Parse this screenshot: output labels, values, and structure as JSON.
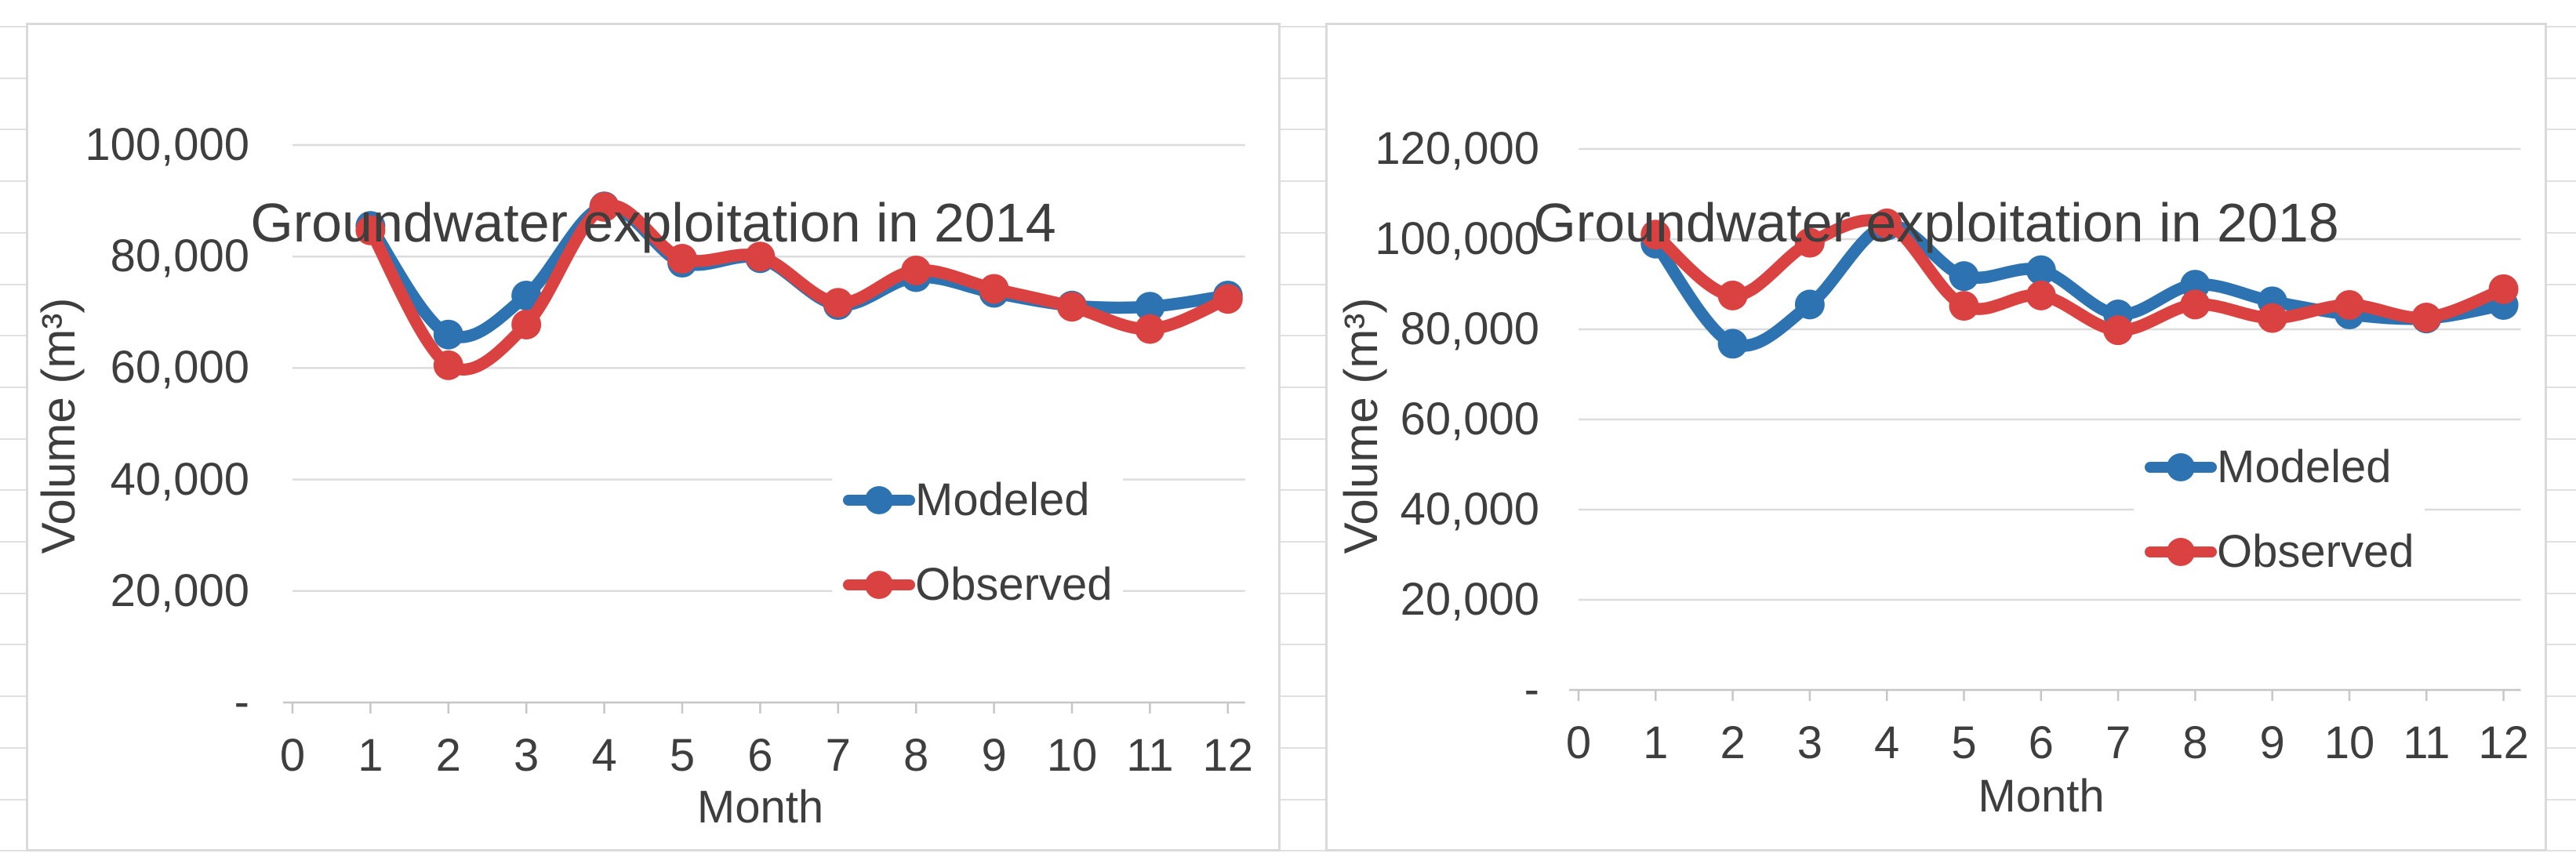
{
  "page": {
    "background": "#FFFFFF"
  },
  "chart_data": [
    {
      "type": "line",
      "title": "Groundwater exploitation in 2014",
      "xlabel": "Month",
      "ylabel": "Volume (m³)",
      "x": [
        1,
        2,
        3,
        4,
        5,
        6,
        7,
        8,
        9,
        10,
        11,
        12
      ],
      "xtick_labels": [
        "0",
        "1",
        "2",
        "3",
        "4",
        "5",
        "6",
        "7",
        "8",
        "9",
        "10",
        "11",
        "12"
      ],
      "ylim": [
        0,
        100000
      ],
      "yticks": [
        0,
        20000,
        40000,
        60000,
        80000,
        100000
      ],
      "ytick_labels": [
        "-",
        "20,000",
        "40,000",
        "60,000",
        "80,000",
        "100,000"
      ],
      "grid": "horizontal",
      "legend_position": "inside-right",
      "series": [
        {
          "name": "Modeled",
          "color": "#2D73B2",
          "values": [
            85500,
            66000,
            73000,
            89000,
            78900,
            79700,
            71300,
            76300,
            73500,
            71200,
            71000,
            73000
          ]
        },
        {
          "name": "Observed",
          "color": "#D94240",
          "values": [
            84700,
            60500,
            67800,
            88900,
            79600,
            80000,
            71700,
            77500,
            74200,
            71000,
            67000,
            72400
          ]
        }
      ]
    },
    {
      "type": "line",
      "title": "Groundwater exploitation in 2018",
      "xlabel": "Month",
      "ylabel": "Volume (m³)",
      "x": [
        1,
        2,
        3,
        4,
        5,
        6,
        7,
        8,
        9,
        10,
        11,
        12
      ],
      "xtick_labels": [
        "0",
        "1",
        "2",
        "3",
        "4",
        "5",
        "6",
        "7",
        "8",
        "9",
        "10",
        "11",
        "12"
      ],
      "ylim": [
        0,
        120000
      ],
      "yticks": [
        0,
        20000,
        40000,
        60000,
        80000,
        100000,
        120000
      ],
      "ytick_labels": [
        "-",
        "20,000",
        "40,000",
        "60,000",
        "80,000",
        "100,000",
        "120,000"
      ],
      "grid": "horizontal",
      "legend_position": "inside-right",
      "series": [
        {
          "name": "Modeled",
          "color": "#2D73B2",
          "values": [
            99000,
            76800,
            85500,
            103000,
            91800,
            93100,
            83300,
            89900,
            86200,
            83300,
            82400,
            85400
          ]
        },
        {
          "name": "Observed",
          "color": "#D94240",
          "values": [
            101000,
            87500,
            99200,
            103500,
            85200,
            87500,
            79800,
            85500,
            82500,
            85400,
            82600,
            88900
          ]
        }
      ]
    }
  ]
}
